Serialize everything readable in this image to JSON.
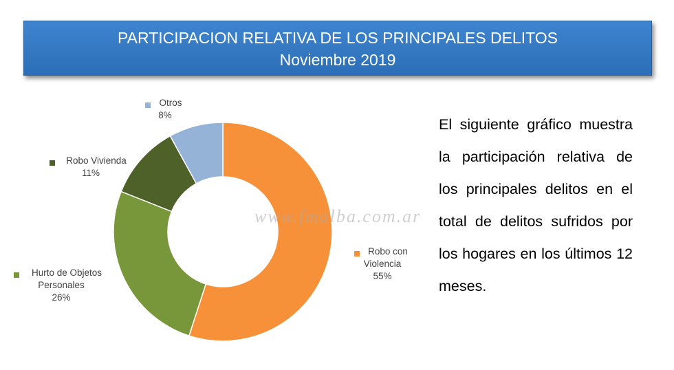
{
  "header": {
    "title": "PARTICIPACION RELATIVA DE LOS PRINCIPALES DELITOS",
    "subtitle": "Noviembre 2019"
  },
  "description": "El siguiente gráfico muestra la participación relativa de los principales delitos en el total de delitos sufridos por los hogares en los últimos 12 meses.",
  "watermark": "www.fmalba.com.ar",
  "chart_data": {
    "type": "pie",
    "variant": "donut",
    "title": "",
    "legend_placement": "labels beside slices",
    "slices": [
      {
        "label_lines": [
          "Robo con",
          "Violencia"
        ],
        "label": "Robo con Violencia",
        "value": 55,
        "value_label": "55%",
        "color": "#f79139"
      },
      {
        "label_lines": [
          "Hurto de Objetos",
          "Personales"
        ],
        "label": "Hurto de Objetos Personales",
        "value": 26,
        "value_label": "26%",
        "color": "#78973a"
      },
      {
        "label_lines": [
          "Robo Vivienda"
        ],
        "label": "Robo Vivienda",
        "value": 11,
        "value_label": "11%",
        "color": "#4e6128"
      },
      {
        "label_lines": [
          "Otros"
        ],
        "label": "Otros",
        "value": 8,
        "value_label": "8%",
        "color": "#95b3d7"
      }
    ]
  }
}
